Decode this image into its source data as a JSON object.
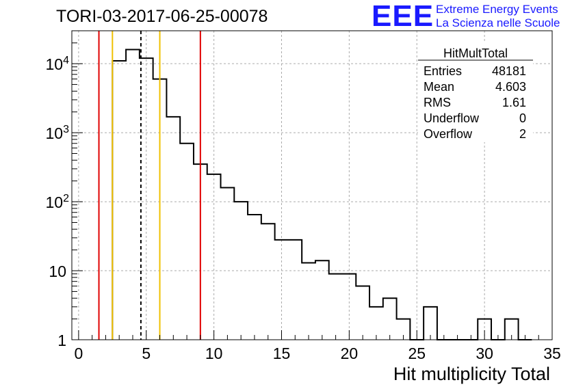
{
  "chart_data": {
    "type": "histogram",
    "title": "TORI-03-2017-06-25-00078",
    "xlabel": "Hit multiplicity Total",
    "ylabel": "",
    "yscale": "log",
    "xlim": [
      -0.5,
      35
    ],
    "ylim": [
      1,
      30000
    ],
    "grid": true,
    "x_ticks": [
      "0",
      "5",
      "10",
      "15",
      "20",
      "25",
      "30",
      "35"
    ],
    "y_ticks": [
      {
        "value": 1,
        "base": "1",
        "exp": ""
      },
      {
        "value": 10,
        "base": "10",
        "exp": ""
      },
      {
        "value": 100,
        "base": "10",
        "exp": "2"
      },
      {
        "value": 1000,
        "base": "10",
        "exp": "3"
      },
      {
        "value": 10000,
        "base": "10",
        "exp": "4"
      }
    ],
    "bins": [
      {
        "x0": 2.5,
        "x1": 3.5,
        "value": 11000
      },
      {
        "x0": 3.5,
        "x1": 4.5,
        "value": 16000
      },
      {
        "x0": 4.5,
        "x1": 5.5,
        "value": 12000
      },
      {
        "x0": 5.5,
        "x1": 6.5,
        "value": 6000
      },
      {
        "x0": 6.5,
        "x1": 7.5,
        "value": 1700
      },
      {
        "x0": 7.5,
        "x1": 8.5,
        "value": 700
      },
      {
        "x0": 8.5,
        "x1": 9.5,
        "value": 350
      },
      {
        "x0": 9.5,
        "x1": 10.5,
        "value": 250
      },
      {
        "x0": 10.5,
        "x1": 11.5,
        "value": 160
      },
      {
        "x0": 11.5,
        "x1": 12.5,
        "value": 100
      },
      {
        "x0": 12.5,
        "x1": 13.5,
        "value": 65
      },
      {
        "x0": 13.5,
        "x1": 14.5,
        "value": 48
      },
      {
        "x0": 14.5,
        "x1": 15.5,
        "value": 28
      },
      {
        "x0": 15.5,
        "x1": 16.5,
        "value": 28
      },
      {
        "x0": 16.5,
        "x1": 17.5,
        "value": 13
      },
      {
        "x0": 17.5,
        "x1": 18.5,
        "value": 14
      },
      {
        "x0": 18.5,
        "x1": 19.5,
        "value": 9
      },
      {
        "x0": 19.5,
        "x1": 20.5,
        "value": 9
      },
      {
        "x0": 20.5,
        "x1": 21.5,
        "value": 6
      },
      {
        "x0": 21.5,
        "x1": 22.5,
        "value": 3
      },
      {
        "x0": 22.5,
        "x1": 23.5,
        "value": 4
      },
      {
        "x0": 23.5,
        "x1": 24.5,
        "value": 2
      },
      {
        "x0": 24.5,
        "x1": 25.5,
        "value": 1
      },
      {
        "x0": 25.5,
        "x1": 26.5,
        "value": 3
      },
      {
        "x0": 26.5,
        "x1": 27.5,
        "value": 1
      },
      {
        "x0": 27.5,
        "x1": 28.5,
        "value": 1
      },
      {
        "x0": 28.5,
        "x1": 29.5,
        "value": 1
      },
      {
        "x0": 29.5,
        "x1": 30.5,
        "value": 2
      },
      {
        "x0": 30.5,
        "x1": 31.5,
        "value": 1
      },
      {
        "x0": 31.5,
        "x1": 32.5,
        "value": 2
      },
      {
        "x0": 32.5,
        "x1": 33.5,
        "value": 1
      }
    ],
    "vertical_lines": [
      {
        "x": 1.5,
        "color": "#e00000",
        "style": "solid"
      },
      {
        "x": 2.5,
        "color": "#f0c000",
        "style": "solid"
      },
      {
        "x": 4.603,
        "color": "#000000",
        "style": "dashed"
      },
      {
        "x": 6.0,
        "color": "#f0c000",
        "style": "solid"
      },
      {
        "x": 9.0,
        "color": "#e00000",
        "style": "solid"
      }
    ],
    "stats_box": {
      "title": "HitMultTotal",
      "rows": [
        {
          "label": "Entries",
          "value": "48181"
        },
        {
          "label": "Mean",
          "value": "4.603"
        },
        {
          "label": "RMS",
          "value": "1.61"
        },
        {
          "label": "Underflow",
          "value": "0"
        },
        {
          "label": "Overflow",
          "value": "2"
        }
      ]
    }
  },
  "logo": {
    "text": "EEE",
    "line1": "Extreme Energy Events",
    "line2": "La Scienza nelle Scuole"
  }
}
